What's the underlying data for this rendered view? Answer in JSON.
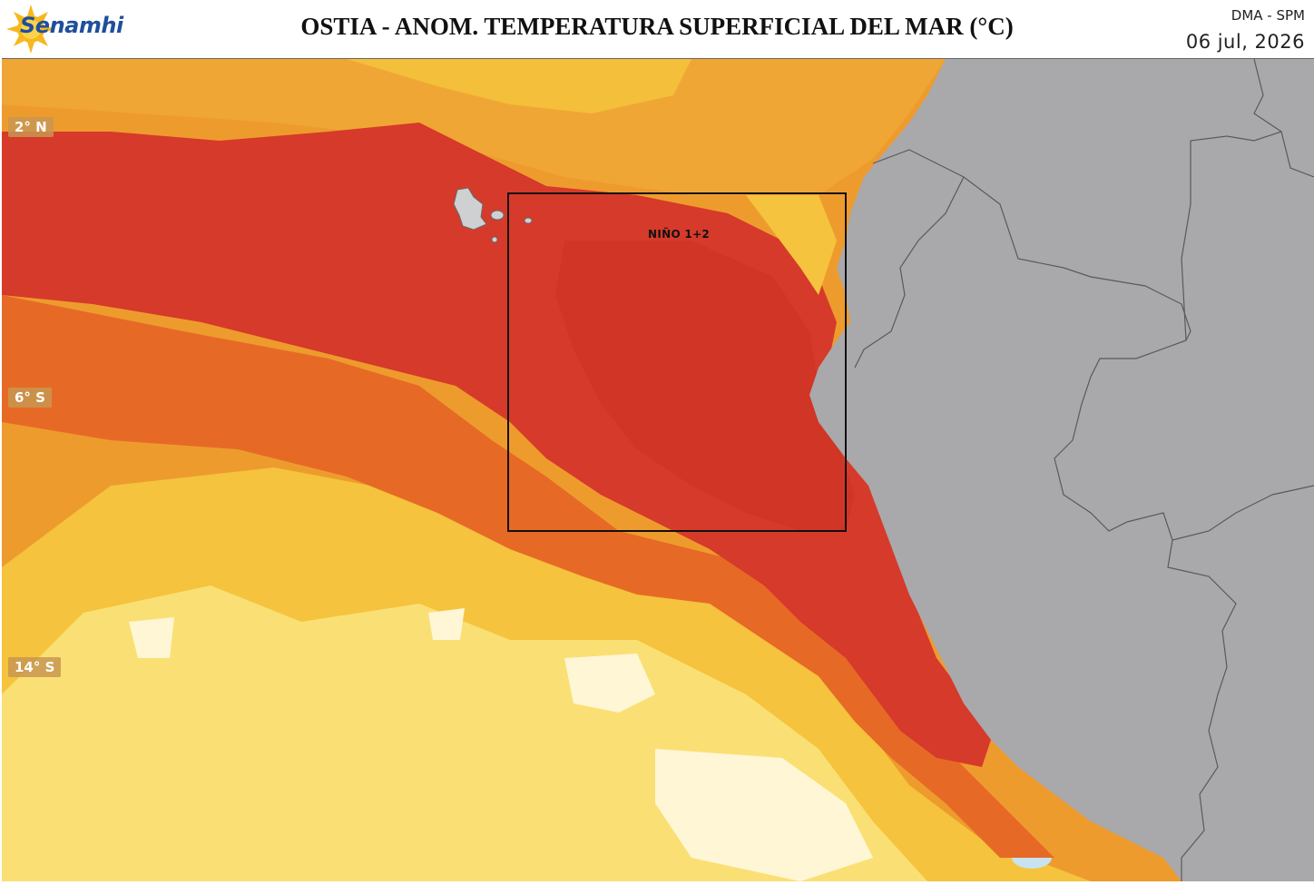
{
  "header": {
    "logo_text": "Senamhi",
    "title": "OSTIA - ANOM. TEMPERATURA SUPERFICIAL DEL MAR (°C)",
    "agency": "DMA - SPM",
    "date": "06 jul, 2026"
  },
  "map": {
    "lat_labels": [
      "2° N",
      "6° S",
      "14° S"
    ],
    "region_label": "NIÑO 1+2",
    "colors": {
      "land": "#a9a9ab",
      "border": "#5a5a5a",
      "anomaly_high": "#d63a2a",
      "anomaly_mid": "#e66a26",
      "anomaly_warm": "#ee9b2e",
      "anomaly_mild": "#f5c33d",
      "anomaly_low": "#fbe37a",
      "anomaly_near_zero": "#fff6d6"
    }
  }
}
